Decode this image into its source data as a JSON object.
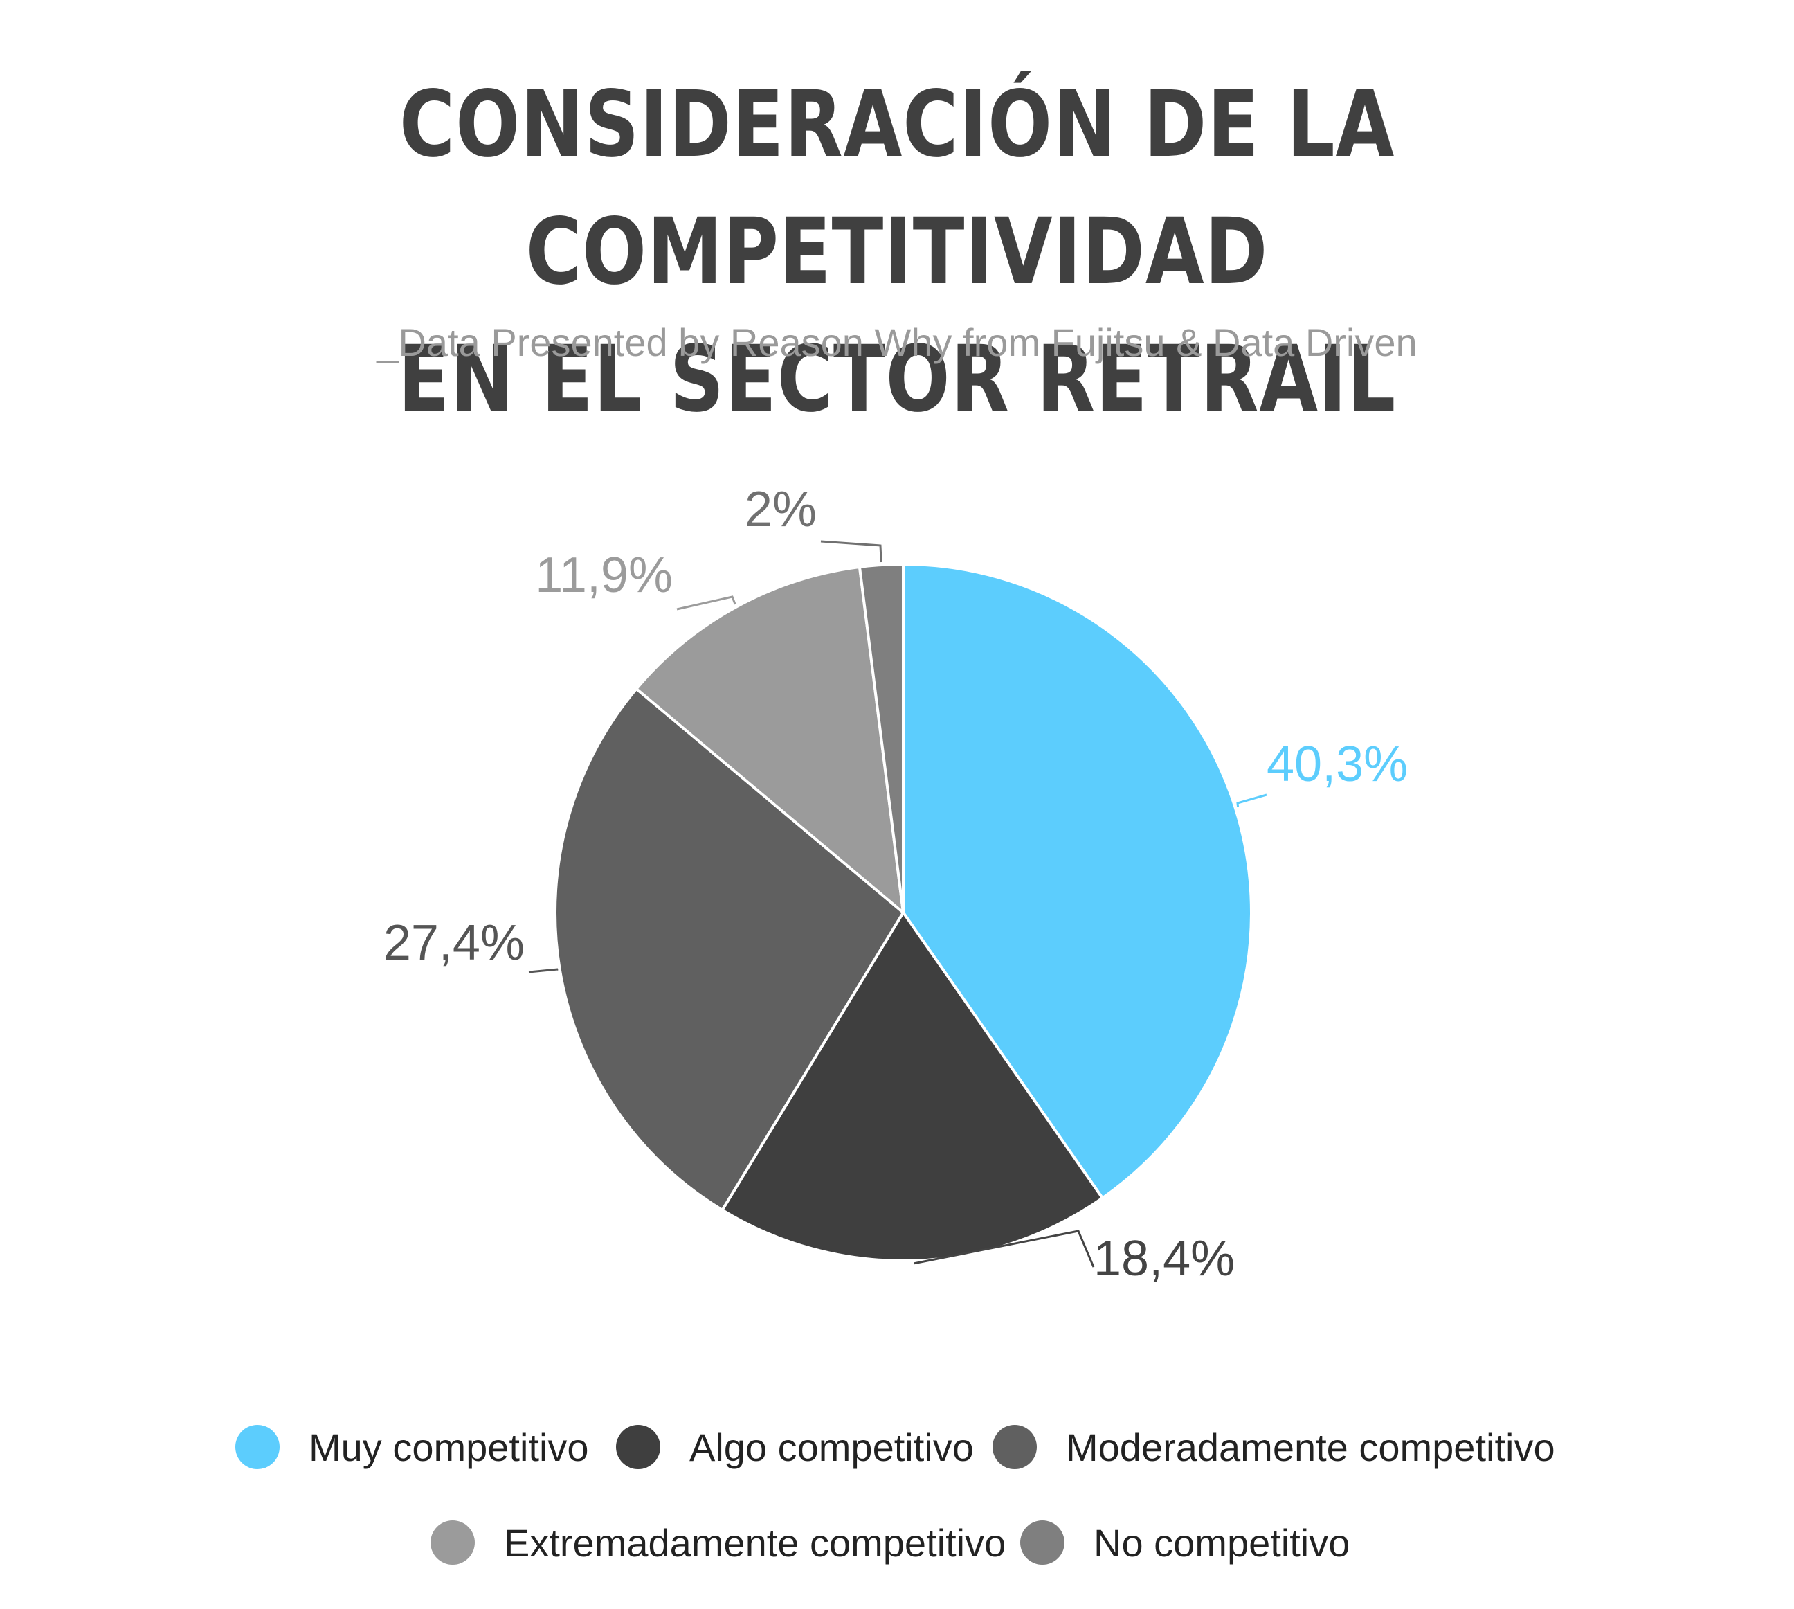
{
  "title_line1": "CONSIDERACIÓN DE LA COMPETITIVIDAD",
  "title_line2": "EN EL SECTOR RETRAIL",
  "subtitle": "_Data Presented by Reason Why from Fujitsu & Data Driven",
  "chart_data": {
    "type": "pie",
    "title": "CONSIDERACIÓN DE LA COMPETITIVIDAD EN EL SECTOR RETRAIL",
    "slices": [
      {
        "name": "Muy competitivo",
        "value": 40.3,
        "label": "40,3%",
        "color": "#5ccdfd",
        "label_color": "#5ccdfd"
      },
      {
        "name": "Algo competitivo",
        "value": 18.4,
        "label": "18,4%",
        "color": "#3f3f3f",
        "label_color": "#444444"
      },
      {
        "name": "Moderadamente competitivo",
        "value": 27.4,
        "label": "27,4%",
        "color": "#606060",
        "label_color": "#555555"
      },
      {
        "name": "Extremadamente competitivo",
        "value": 11.9,
        "label": "11,9%",
        "color": "#9b9b9b",
        "label_color": "#9b9b9b"
      },
      {
        "name": "No competitivo",
        "value": 2,
        "label": "2%",
        "color": "#7f7f7f",
        "label_color": "#707070"
      }
    ],
    "legend_position": "bottom"
  }
}
